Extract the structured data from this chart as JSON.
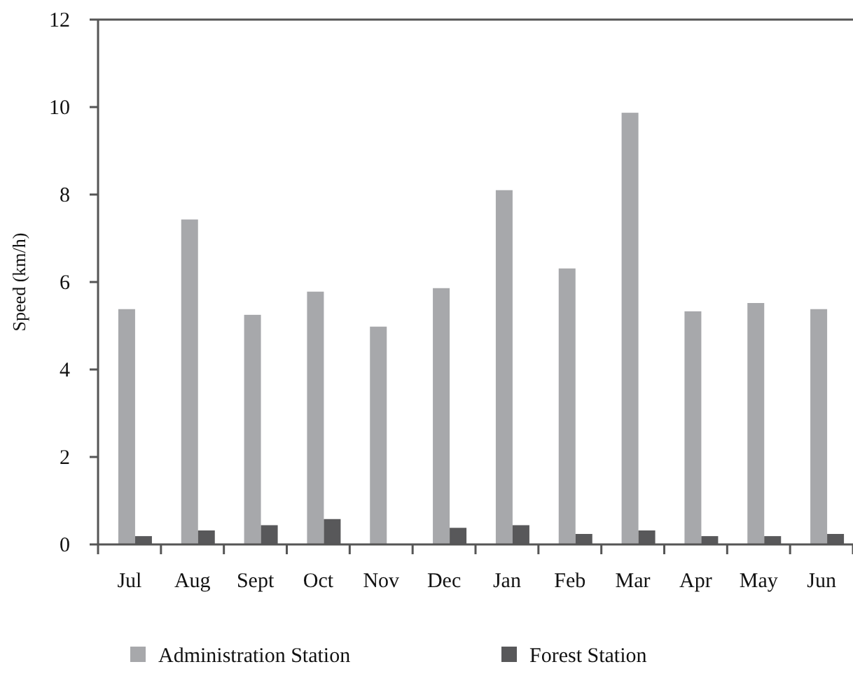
{
  "chart_data": {
    "type": "bar",
    "ylabel": "Speed (km/h)",
    "categories": [
      "Jul",
      "Aug",
      "Sept",
      "Oct",
      "Nov",
      "Dec",
      "Jan",
      "Feb",
      "Mar",
      "Apr",
      "May",
      "Jun"
    ],
    "series": [
      {
        "name": "Administration Station",
        "color": "#a7a8ab",
        "values": [
          5.38,
          7.43,
          5.25,
          5.78,
          4.98,
          5.86,
          8.1,
          6.31,
          9.87,
          5.33,
          5.52,
          5.38
        ]
      },
      {
        "name": "Forest Station",
        "color": "#58585a",
        "values": [
          0.19,
          0.32,
          0.44,
          0.58,
          0,
          0.38,
          0.44,
          0.24,
          0.32,
          0.19,
          0.19,
          0.24
        ]
      }
    ],
    "ylim": [
      0,
      12
    ],
    "yticks": [
      0,
      2,
      4,
      6,
      8,
      10,
      12
    ],
    "grid": false,
    "legend": "bottom"
  }
}
